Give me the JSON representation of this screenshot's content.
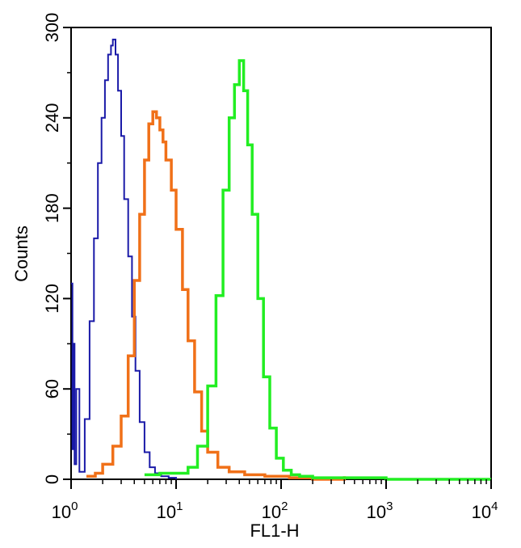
{
  "chart_data": {
    "type": "line",
    "subtype": "flow-cytometry-histogram",
    "title": "",
    "xlabel": "FL1-H",
    "ylabel": "Counts",
    "x_scale": "log",
    "xlim": [
      1,
      10000
    ],
    "ylim": [
      0,
      300
    ],
    "x_ticks": [
      {
        "base": "10",
        "exp": "0",
        "value": 1
      },
      {
        "base": "10",
        "exp": "1",
        "value": 10
      },
      {
        "base": "10",
        "exp": "2",
        "value": 100
      },
      {
        "base": "10",
        "exp": "3",
        "value": 1000
      },
      {
        "base": "10",
        "exp": "4",
        "value": 10000
      }
    ],
    "y_ticks": [
      "0",
      "60",
      "120",
      "180",
      "240",
      "300"
    ],
    "grid": false,
    "legend": "none",
    "series": [
      {
        "color": "#1a1aa8",
        "x": [
          1.0,
          1.03,
          1.05,
          1.08,
          1.12,
          1.2,
          1.35,
          1.5,
          1.65,
          1.8,
          1.95,
          2.1,
          2.25,
          2.4,
          2.5,
          2.65,
          2.8,
          3.0,
          3.2,
          3.5,
          3.8,
          4.1,
          4.5,
          5.0,
          5.6,
          6.3,
          7.2,
          8.5,
          10.0
        ],
        "y": [
          130,
          20,
          90,
          10,
          60,
          5,
          40,
          105,
          160,
          210,
          240,
          265,
          282,
          288,
          292,
          282,
          258,
          228,
          186,
          148,
          108,
          72,
          38,
          18,
          8,
          4,
          2,
          1,
          0
        ]
      },
      {
        "color": "#f07018",
        "x": [
          1.4,
          1.7,
          2.0,
          2.5,
          3.0,
          3.5,
          4.0,
          4.5,
          5.0,
          5.5,
          6.0,
          6.5,
          7.0,
          7.5,
          8.0,
          9.0,
          10.0,
          11.5,
          13.0,
          15.0,
          17.5,
          20.0,
          25.0,
          32.0,
          45.0,
          70.0,
          120.0,
          200.0,
          400.0
        ],
        "y": [
          2,
          4,
          10,
          22,
          42,
          82,
          132,
          176,
          212,
          236,
          244,
          240,
          232,
          224,
          212,
          192,
          166,
          126,
          92,
          58,
          32,
          18,
          8,
          5,
          3,
          2,
          1,
          0,
          2
        ]
      },
      {
        "color": "#22ee22",
        "x": [
          5.0,
          7.0,
          10.0,
          13.0,
          16.0,
          20.0,
          24.0,
          28.0,
          32.0,
          36.0,
          40.0,
          44.0,
          48.0,
          53.0,
          60.0,
          68.0,
          78.0,
          90.0,
          105.0,
          125.0,
          150.0,
          200.0,
          300.0,
          600.0,
          1000.0,
          10000.0
        ],
        "y": [
          3,
          4,
          4,
          8,
          22,
          62,
          122,
          192,
          240,
          262,
          278,
          258,
          222,
          176,
          120,
          68,
          34,
          14,
          6,
          3,
          2,
          1,
          1,
          1,
          0,
          0
        ]
      }
    ]
  }
}
